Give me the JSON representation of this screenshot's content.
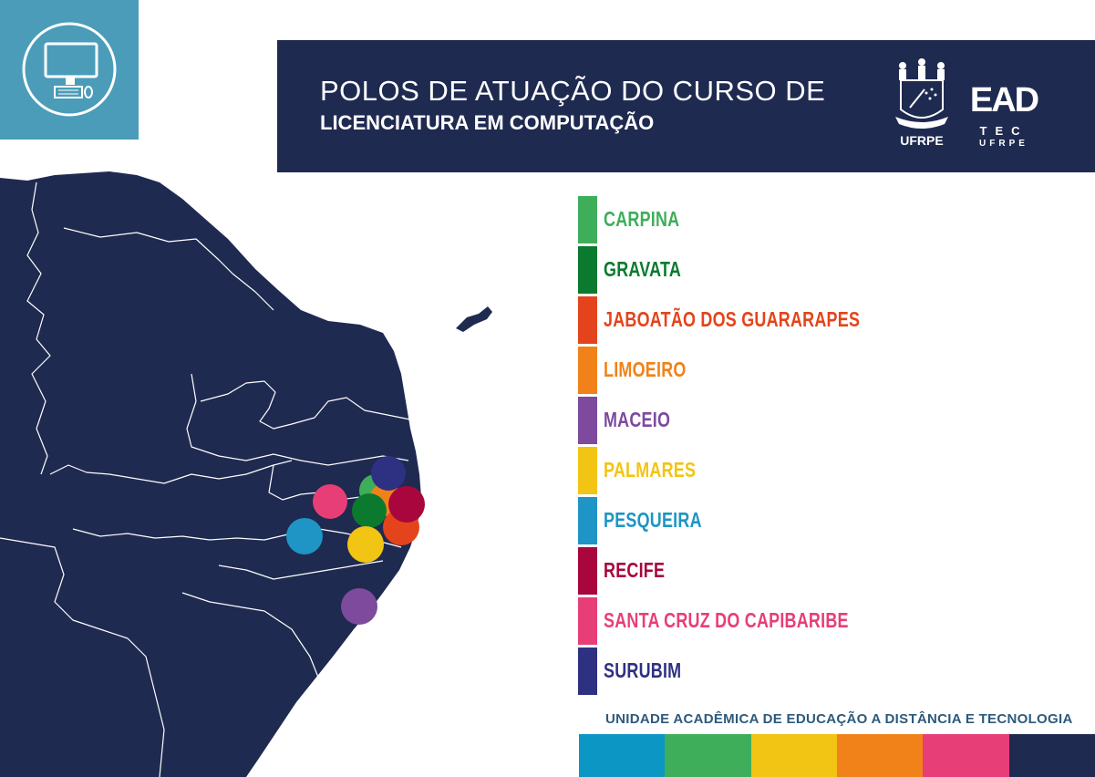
{
  "header": {
    "title_line1": "POLOS DE ATUAÇÃO DO CURSO DE",
    "title_line2": "LICENCIATURA EM COMPUTAÇÃO",
    "logo_ufrpe_text": "UFRPE",
    "logo_ead_text": "EAD",
    "logo_tec_text": "TEC",
    "logo_tec_sub": "UFRPE",
    "background_color": "#1f2a50"
  },
  "corner_icon": {
    "name": "computer-icon",
    "background_color": "#4b9cb8"
  },
  "legend": [
    {
      "label": "CARPINA",
      "color": "#3fae5a"
    },
    {
      "label": "GRAVATA",
      "color": "#0c7a2e"
    },
    {
      "label": "JABOATÃO DOS GUARARAPES",
      "color": "#e4441b"
    },
    {
      "label": "LIMOEIRO",
      "color": "#f08219"
    },
    {
      "label": "MACEIO",
      "color": "#7d4a9e"
    },
    {
      "label": "PALMARES",
      "color": "#f2c414"
    },
    {
      "label": "PESQUEIRA",
      "color": "#1e95c4"
    },
    {
      "label": "RECIFE",
      "color": "#a8063d"
    },
    {
      "label": "SANTA CRUZ DO CAPIBARIBE",
      "color": "#e83e78"
    },
    {
      "label": "SURUBIM",
      "color": "#2e3181"
    }
  ],
  "footer": {
    "text": "UNIDADE ACADÊMICA DE EDUCAÇÃO A DISTÂNCIA E TECNOLOGIA",
    "text_color": "#2d5a7b",
    "bar_colors": [
      "#0b96c4",
      "#3fae5a",
      "#f2c414",
      "#f08219",
      "#e83e78",
      "#1f2a50"
    ]
  },
  "map": {
    "land_color": "#1f2a50",
    "border_color": "#ffffff"
  }
}
